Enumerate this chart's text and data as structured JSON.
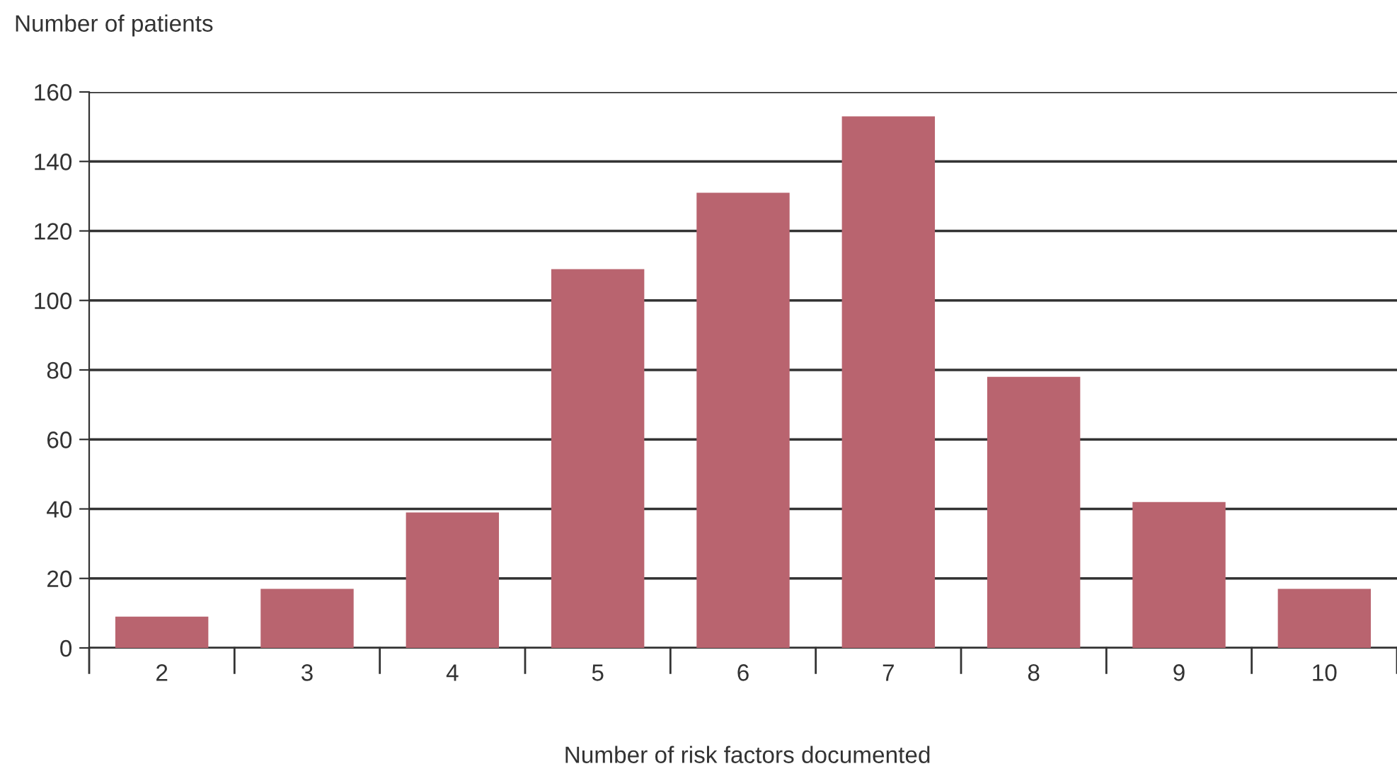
{
  "chart_data": {
    "type": "bar",
    "ylabel": "Number of patients",
    "xlabel": "Number of risk factors documented",
    "categories": [
      "2",
      "3",
      "4",
      "5",
      "6",
      "7",
      "8",
      "9",
      "10"
    ],
    "values": [
      9,
      17,
      39,
      109,
      131,
      153,
      78,
      42,
      17
    ],
    "color": "#b9646f",
    "ylim": [
      0,
      160
    ],
    "yticks": [
      0,
      20,
      40,
      60,
      80,
      100,
      120,
      140,
      160
    ],
    "grid": "y",
    "legend": false
  }
}
